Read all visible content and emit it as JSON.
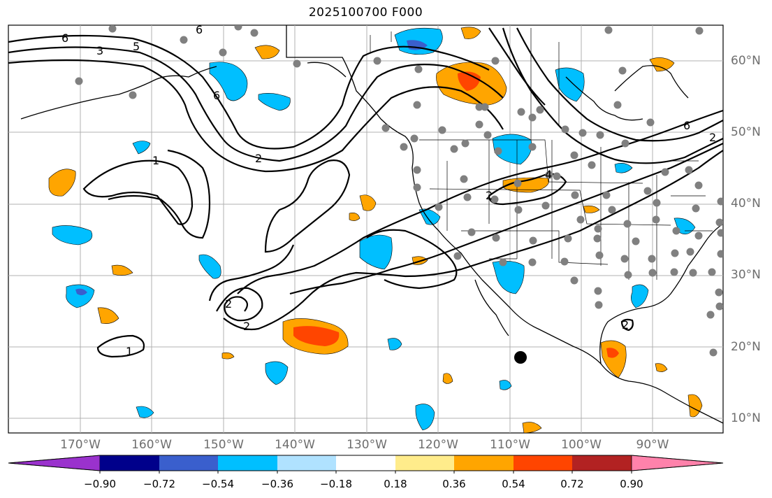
{
  "title": "2025100700 F000",
  "lat_labels": [
    "60°N",
    "50°N",
    "40°N",
    "30°N",
    "20°N",
    "10°N"
  ],
  "lon_labels": [
    "170°W",
    "160°W",
    "150°W",
    "140°W",
    "130°W",
    "120°W",
    "110°W",
    "100°W",
    "90°W"
  ],
  "colorbar": {
    "tick_labels": [
      "−0.90",
      "−0.72",
      "−0.54",
      "−0.36",
      "−0.18",
      "0.18",
      "0.36",
      "0.54",
      "0.72",
      "0.90"
    ],
    "colors": [
      "#9a32cd",
      "#00008b",
      "#3a5fcd",
      "#00bfff",
      "#b0e2ff",
      "#ffffff",
      "#ffec8b",
      "#ffa500",
      "#ff4500",
      "#b22222",
      "#ff82ab"
    ]
  },
  "contour_labels": [
    "6",
    "3",
    "5",
    "6",
    "6",
    "1",
    "2",
    "2",
    "2",
    "1",
    "4",
    "6",
    "2",
    "2",
    "2"
  ],
  "colors": {
    "neg_fill": "#00bfff",
    "pos_fill": "#ffa500",
    "strong_pos": "#ff4500",
    "strong_neg": "#3a5fcd",
    "station": "#808080"
  }
}
